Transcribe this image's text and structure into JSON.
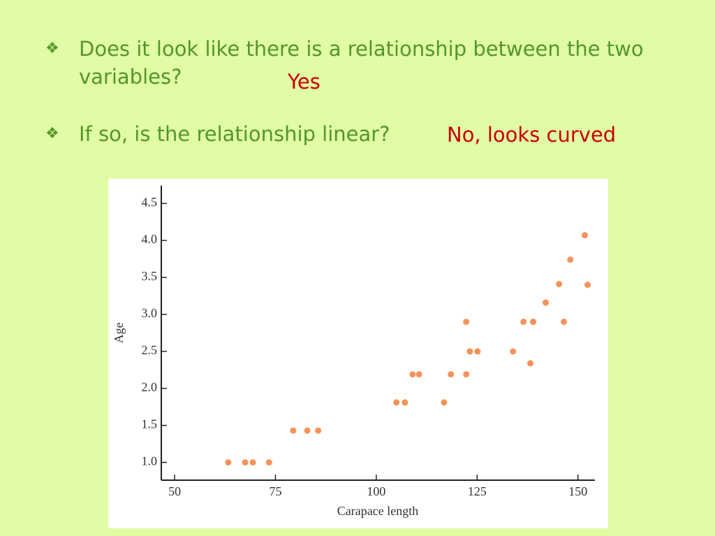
{
  "bullets": [
    {
      "text": "Does it look like there is a relationship between the two variables?",
      "answer": "Yes"
    },
    {
      "text": "If so, is the relationship linear?",
      "answer": "No, looks curved"
    }
  ],
  "chart_data": {
    "type": "scatter",
    "x_label": "Carapace length",
    "y_label": "Age",
    "color": "#f4935a",
    "x": [
      63.3,
      67.5,
      69.4,
      73.4,
      79.4,
      82.9,
      85.6,
      105.0,
      107.1,
      109.0,
      110.6,
      116.8,
      118.5,
      122.3,
      122.3,
      123.2,
      125.1,
      133.9,
      136.5,
      138.2,
      138.9,
      142.0,
      145.3,
      146.5,
      148.1,
      151.7,
      152.4
    ],
    "values": [
      1.0,
      1.0,
      1.0,
      1.0,
      1.43,
      1.43,
      1.43,
      1.81,
      1.81,
      2.19,
      2.19,
      1.81,
      2.19,
      2.19,
      2.9,
      2.5,
      2.5,
      2.5,
      2.9,
      2.34,
      2.9,
      3.16,
      3.41,
      2.9,
      3.74,
      4.07,
      3.4
    ],
    "xlim": [
      46.7,
      154.2
    ],
    "xticks": [
      50,
      75,
      100,
      125,
      150
    ],
    "ylim": [
      0.76,
      4.74
    ],
    "yticks": [
      {
        "value": 1,
        "label": "1.0"
      },
      1.5,
      {
        "value": 2,
        "label": "2.0"
      },
      2.5,
      {
        "value": 3,
        "label": "3.0"
      },
      3.5,
      {
        "value": 4,
        "label": "4.0"
      },
      4.5
    ]
  }
}
